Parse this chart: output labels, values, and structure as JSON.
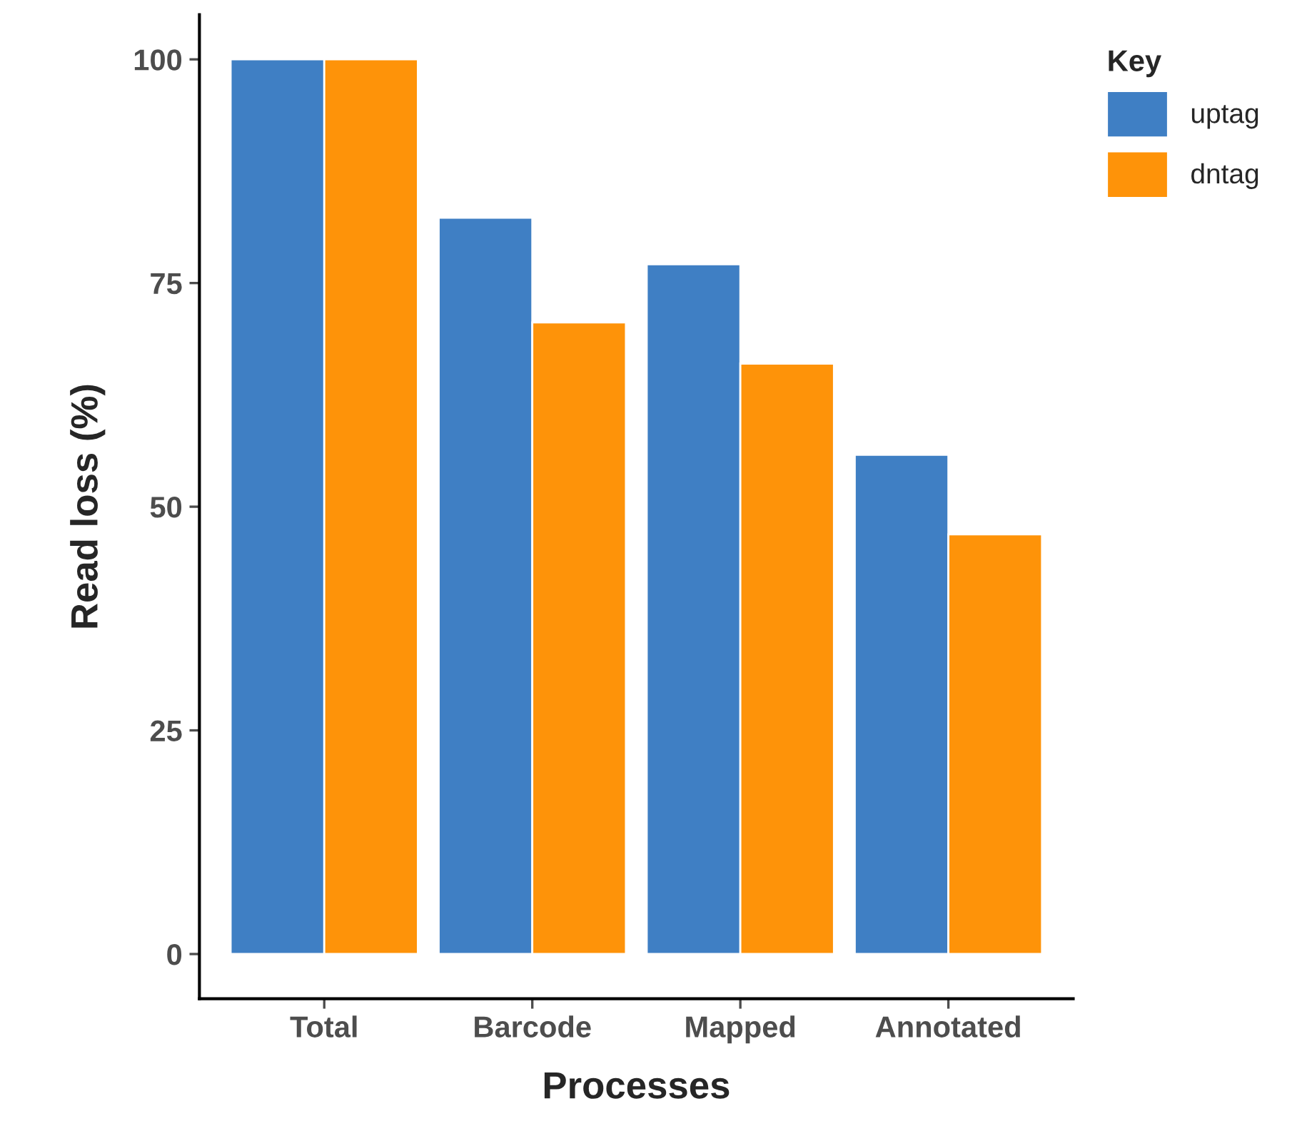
{
  "chart_data": {
    "type": "bar",
    "xlabel": "Processes",
    "ylabel": "Read loss (%)",
    "legend_title": "Key",
    "categories": [
      "Total",
      "Barcode",
      "Mapped",
      "Annotated"
    ],
    "series": [
      {
        "name": "uptag",
        "color": "#3f7fc4",
        "values": [
          100,
          82.3,
          77.1,
          55.8
        ]
      },
      {
        "name": "dntag",
        "color": "#fe9309",
        "values": [
          100,
          70.6,
          66.0,
          46.9
        ]
      }
    ],
    "ylim": [
      -5,
      105
    ],
    "yticks": [
      0,
      25,
      50,
      75,
      100
    ],
    "grid": false,
    "legend": "right"
  }
}
